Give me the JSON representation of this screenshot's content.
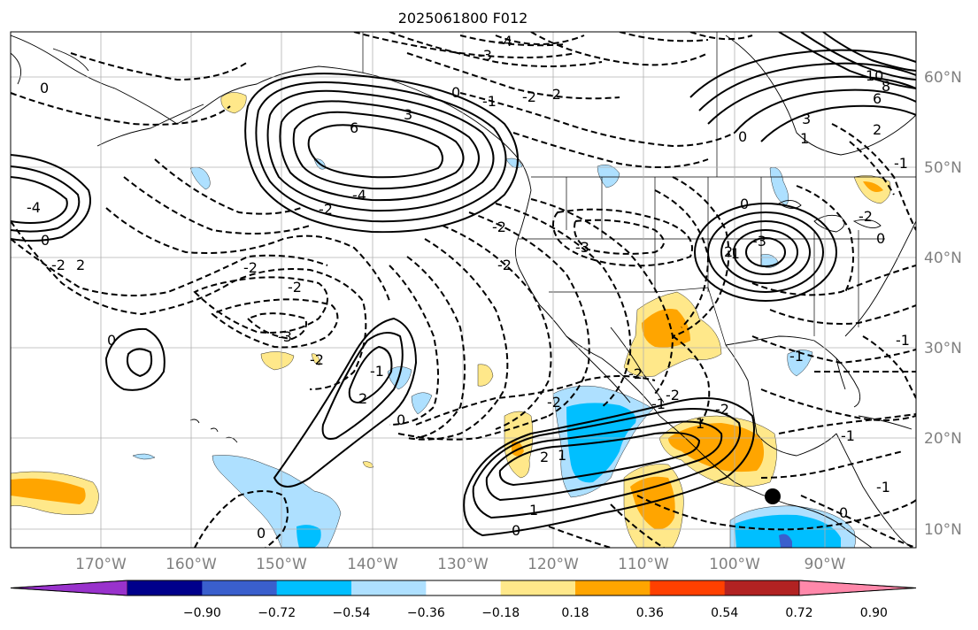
{
  "title": "2025061800 F012",
  "lon_labels": [
    "170°W",
    "160°W",
    "150°W",
    "140°W",
    "130°W",
    "120°W",
    "110°W",
    "100°W",
    "90°W"
  ],
  "lat_labels": [
    "60°N",
    "50°N",
    "40°N",
    "30°N",
    "20°N",
    "10°N"
  ],
  "colorbar": {
    "labels": [
      "−0.90",
      "−0.72",
      "−0.54",
      "−0.36",
      "−0.18",
      "0.18",
      "0.36",
      "0.54",
      "0.72",
      "0.90"
    ],
    "colors": [
      "#9932cc",
      "#00008b",
      "#3a5fcd",
      "#00bfff",
      "#aee0ff",
      "#ffffff",
      "#ffe88a",
      "#ffa500",
      "#ff4000",
      "#b22222",
      "#ff88aa"
    ]
  },
  "contour_labels": [
    "-4",
    "-3",
    "0",
    "-1",
    "-2",
    "-2",
    "10",
    "8",
    "6",
    "3",
    "2",
    "1",
    "0",
    "6",
    "3",
    "-4",
    "-2",
    "0",
    "-4",
    "0",
    "-2",
    "2",
    "-2",
    "-2",
    "-2",
    "-2",
    "-3",
    "0",
    "-1",
    "-2",
    "0",
    "2",
    "-3",
    "-1",
    "-3",
    "-2",
    "0",
    "2",
    "-1",
    "-2",
    "0",
    "-2",
    "-1",
    "1",
    "-2",
    "-2",
    "1",
    "2",
    "1",
    "0",
    "0",
    "-1",
    "-1",
    "0",
    "-1",
    "-1"
  ],
  "marker": "station-dot"
}
